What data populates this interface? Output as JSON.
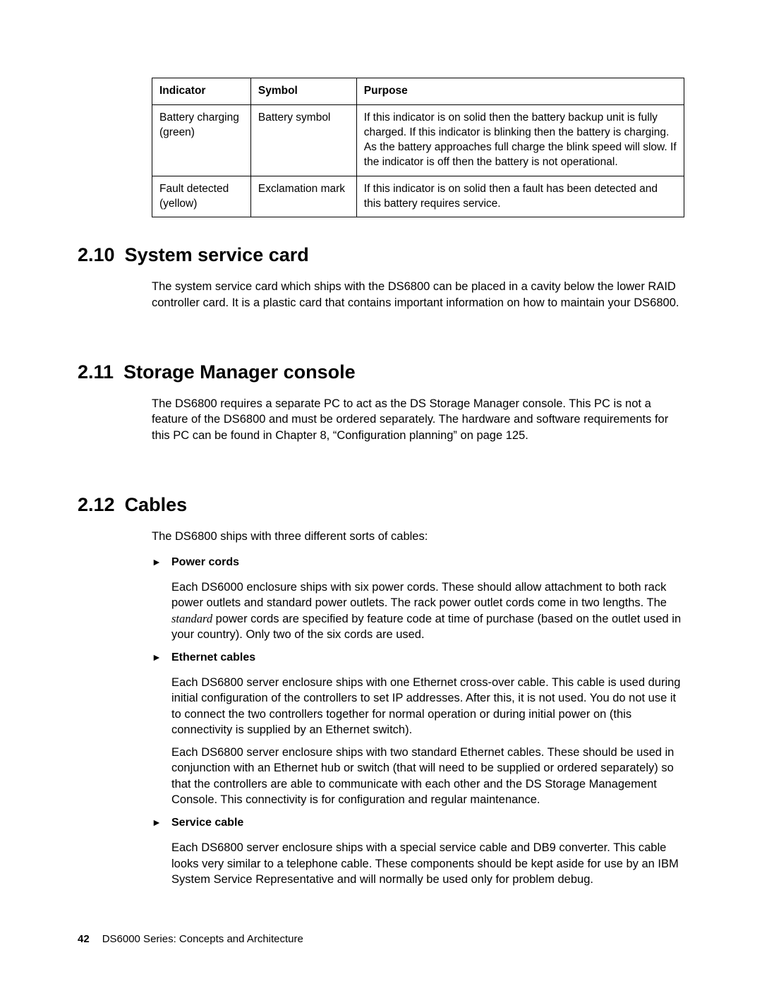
{
  "table": {
    "headers": {
      "indicator": "Indicator",
      "symbol": "Symbol",
      "purpose": "Purpose"
    },
    "rows": [
      {
        "indicator": "Battery charging (green)",
        "symbol": "Battery symbol",
        "purpose": "If this indicator is on solid then the battery backup unit is fully charged. If this indicator is blinking then the battery is charging. As the battery approaches full charge the blink speed will slow. If the indicator is off then the battery is not operational."
      },
      {
        "indicator": "Fault detected (yellow)",
        "symbol": "Exclamation mark",
        "purpose": "If this indicator is on solid then a fault has been detected and this battery requires service."
      }
    ]
  },
  "sections": {
    "s210": {
      "num": "2.10",
      "title": "System service card",
      "para": "The system service card which ships with the DS6800 can be placed in a cavity below the lower RAID controller card. It is a plastic card that contains important information on how to maintain your DS6800."
    },
    "s211": {
      "num": "2.11",
      "title": "Storage Manager console",
      "para": "The DS6800 requires a separate PC to act as the DS Storage Manager console. This PC is not a feature of the DS6800 and must be ordered separately. The hardware and software requirements for this PC can be found in Chapter 8, “Configuration planning” on page 125."
    },
    "s212": {
      "num": "2.12",
      "title": "Cables",
      "intro": "The DS6800 ships with three different sorts of cables:",
      "bullets": {
        "b1": {
          "title": "Power cords",
          "p1a": "Each DS6000 enclosure ships with six power cords. These should allow attachment to both rack power outlets and standard power outlets. The rack power outlet cords come in two lengths. The ",
          "p1italic": "standard",
          "p1b": " power cords are specified by feature code at time of purchase (based on the outlet used in your country). Only two of the six cords are used."
        },
        "b2": {
          "title": "Ethernet cables",
          "p1": "Each DS6800 server enclosure ships with one Ethernet cross-over cable. This cable is used during initial configuration of the controllers to set IP addresses. After this, it is not used. You do not use it to connect the two controllers together for normal operation or during initial power on (this connectivity is supplied by an Ethernet switch).",
          "p2": "Each DS6800 server enclosure ships with two standard Ethernet cables. These should be used in conjunction with an Ethernet hub or switch (that will need to be supplied or ordered separately) so that the controllers are able to communicate with each other and the DS Storage Management Console. This connectivity is for configuration and regular maintenance."
        },
        "b3": {
          "title": "Service cable",
          "p1": "Each DS6800 server enclosure ships with a special service cable and DB9 converter. This cable looks very similar to a telephone cable. These components should be kept aside for use by an IBM System Service Representative and will normally be used only for problem debug."
        }
      }
    }
  },
  "footer": {
    "page_number": "42",
    "title": "DS6000 Series: Concepts and Architecture"
  },
  "bullet_glyph": "►"
}
